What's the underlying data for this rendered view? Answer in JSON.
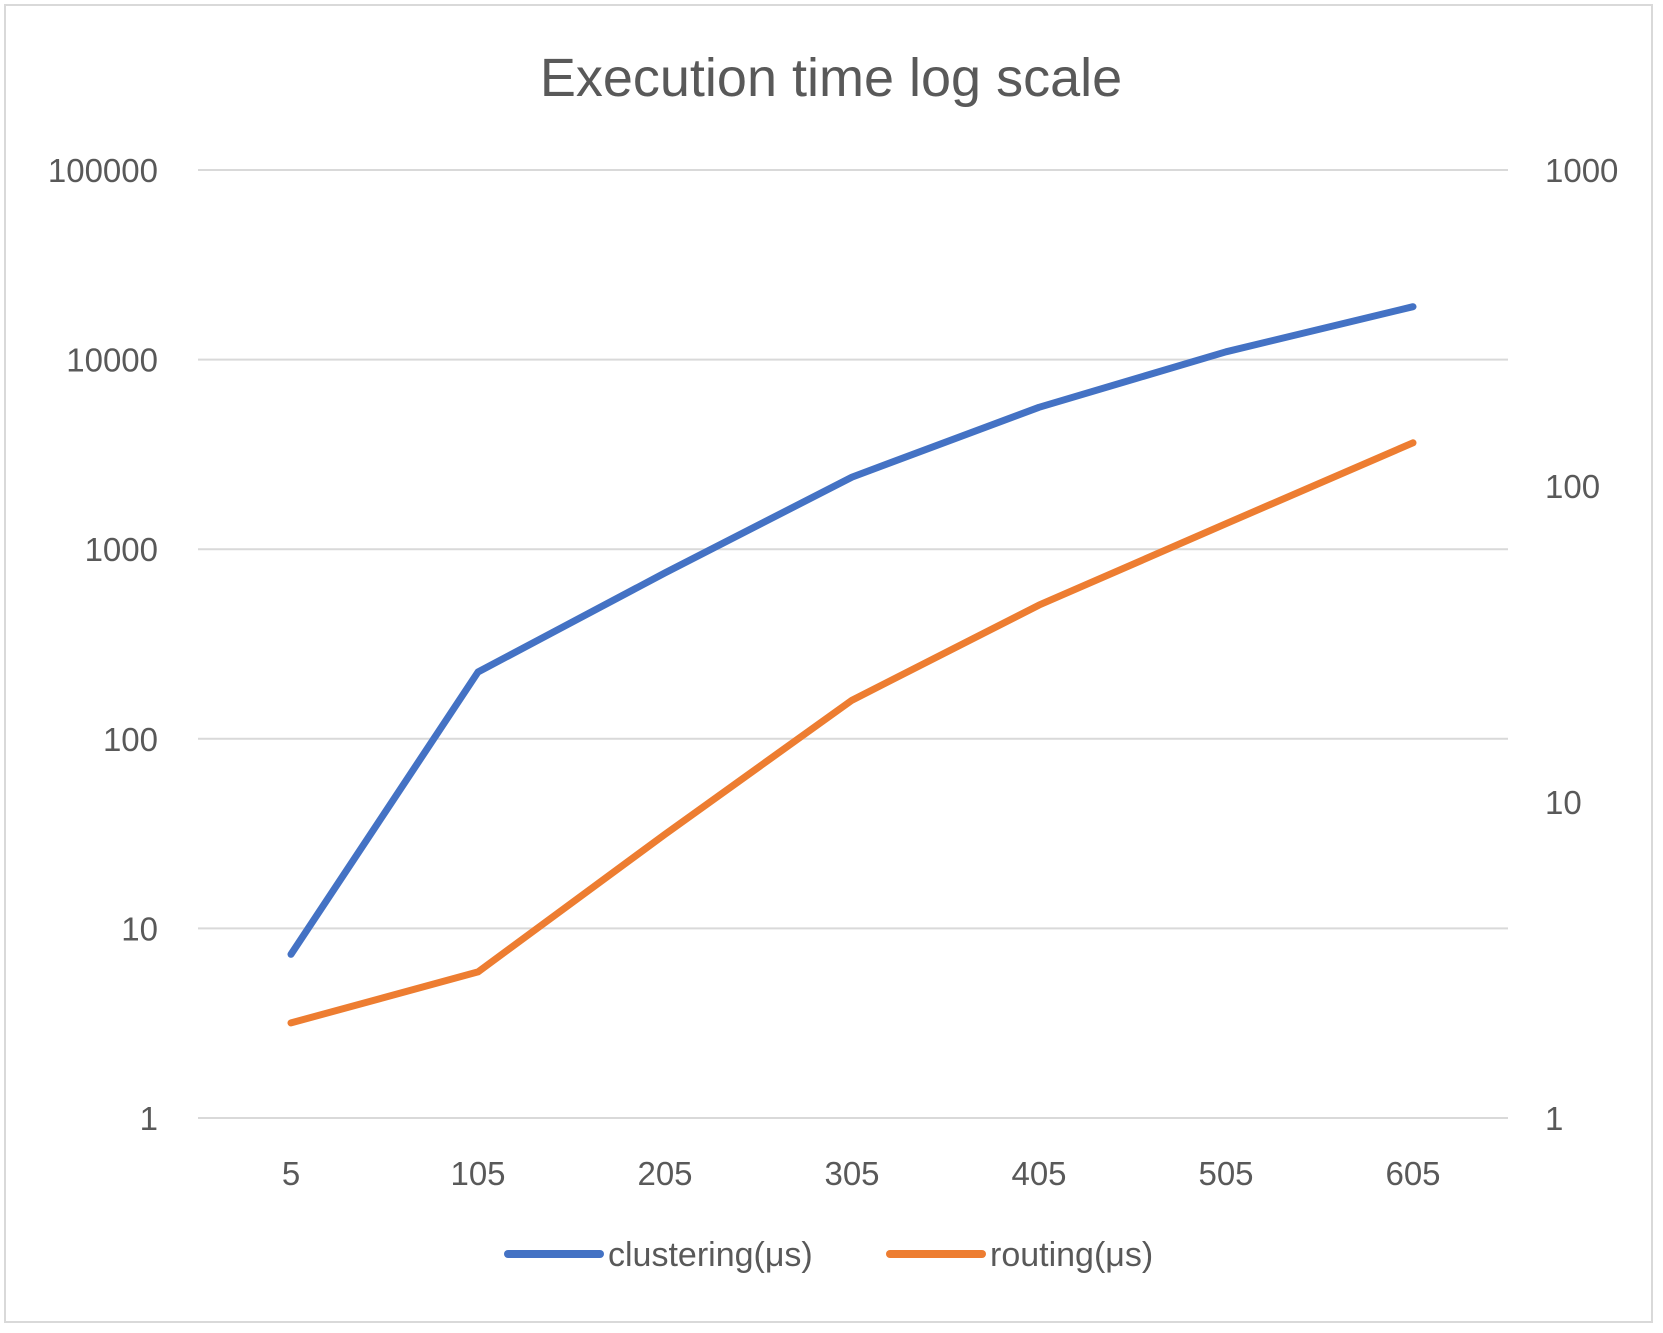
{
  "chart_data": {
    "type": "line",
    "title": "Execution time log scale",
    "x": [
      5,
      105,
      205,
      305,
      405,
      505,
      605
    ],
    "x_tick_labels": [
      "5",
      "105",
      "205",
      "305",
      "405",
      "505",
      "605"
    ],
    "y_left": {
      "scale": "log",
      "range": [
        1,
        100000
      ],
      "tick_labels": [
        "1",
        "10",
        "100",
        "1000",
        "10000",
        "100000"
      ]
    },
    "y_right": {
      "scale": "log",
      "range": [
        1,
        1000
      ],
      "tick_labels": [
        "1",
        "10",
        "100",
        "1000"
      ]
    },
    "grid": true,
    "legend_position": "bottom",
    "series": [
      {
        "name": "clustering(μs)",
        "axis": "left",
        "color": "#4472c4",
        "values": [
          7.3,
          225,
          750,
          2400,
          5600,
          11000,
          19000
        ]
      },
      {
        "name": "routing(μs)",
        "axis": "right",
        "color": "#ed7d31",
        "values": [
          2,
          2.9,
          7.9,
          21,
          42,
          76,
          137
        ]
      }
    ]
  }
}
